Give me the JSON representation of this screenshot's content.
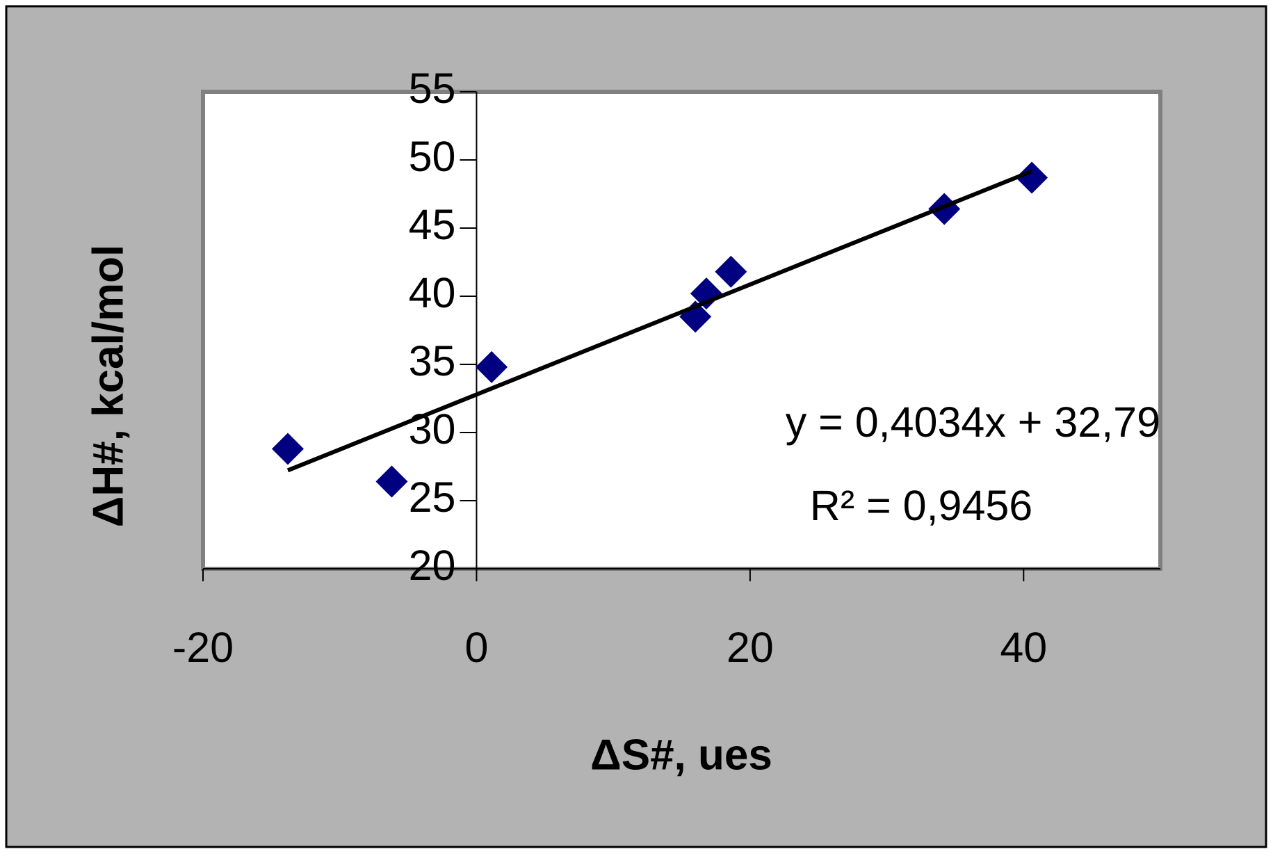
{
  "chart_data": {
    "type": "scatter",
    "x_label": "ΔS#, ues",
    "y_label": "ΔH#, kcal/mol",
    "x": [
      -13.8,
      -6.2,
      1.1,
      16.0,
      16.8,
      18.6,
      34.2,
      40.6
    ],
    "values": [
      28.8,
      26.4,
      34.8,
      38.5,
      40.2,
      41.8,
      46.4,
      48.7
    ],
    "color": "#000080",
    "xlim": [
      -20,
      50
    ],
    "xticks": [
      -20,
      0,
      20,
      40
    ],
    "ylim": [
      20,
      55
    ],
    "yticks": [
      20,
      25,
      30,
      35,
      40,
      45,
      50,
      55
    ],
    "trendline": {
      "slope": 0.4034,
      "intercept": 32.79,
      "color": "#000000",
      "label": "y = 0,4034x + 32,79",
      "r2_label": "R² = 0,9456"
    }
  }
}
